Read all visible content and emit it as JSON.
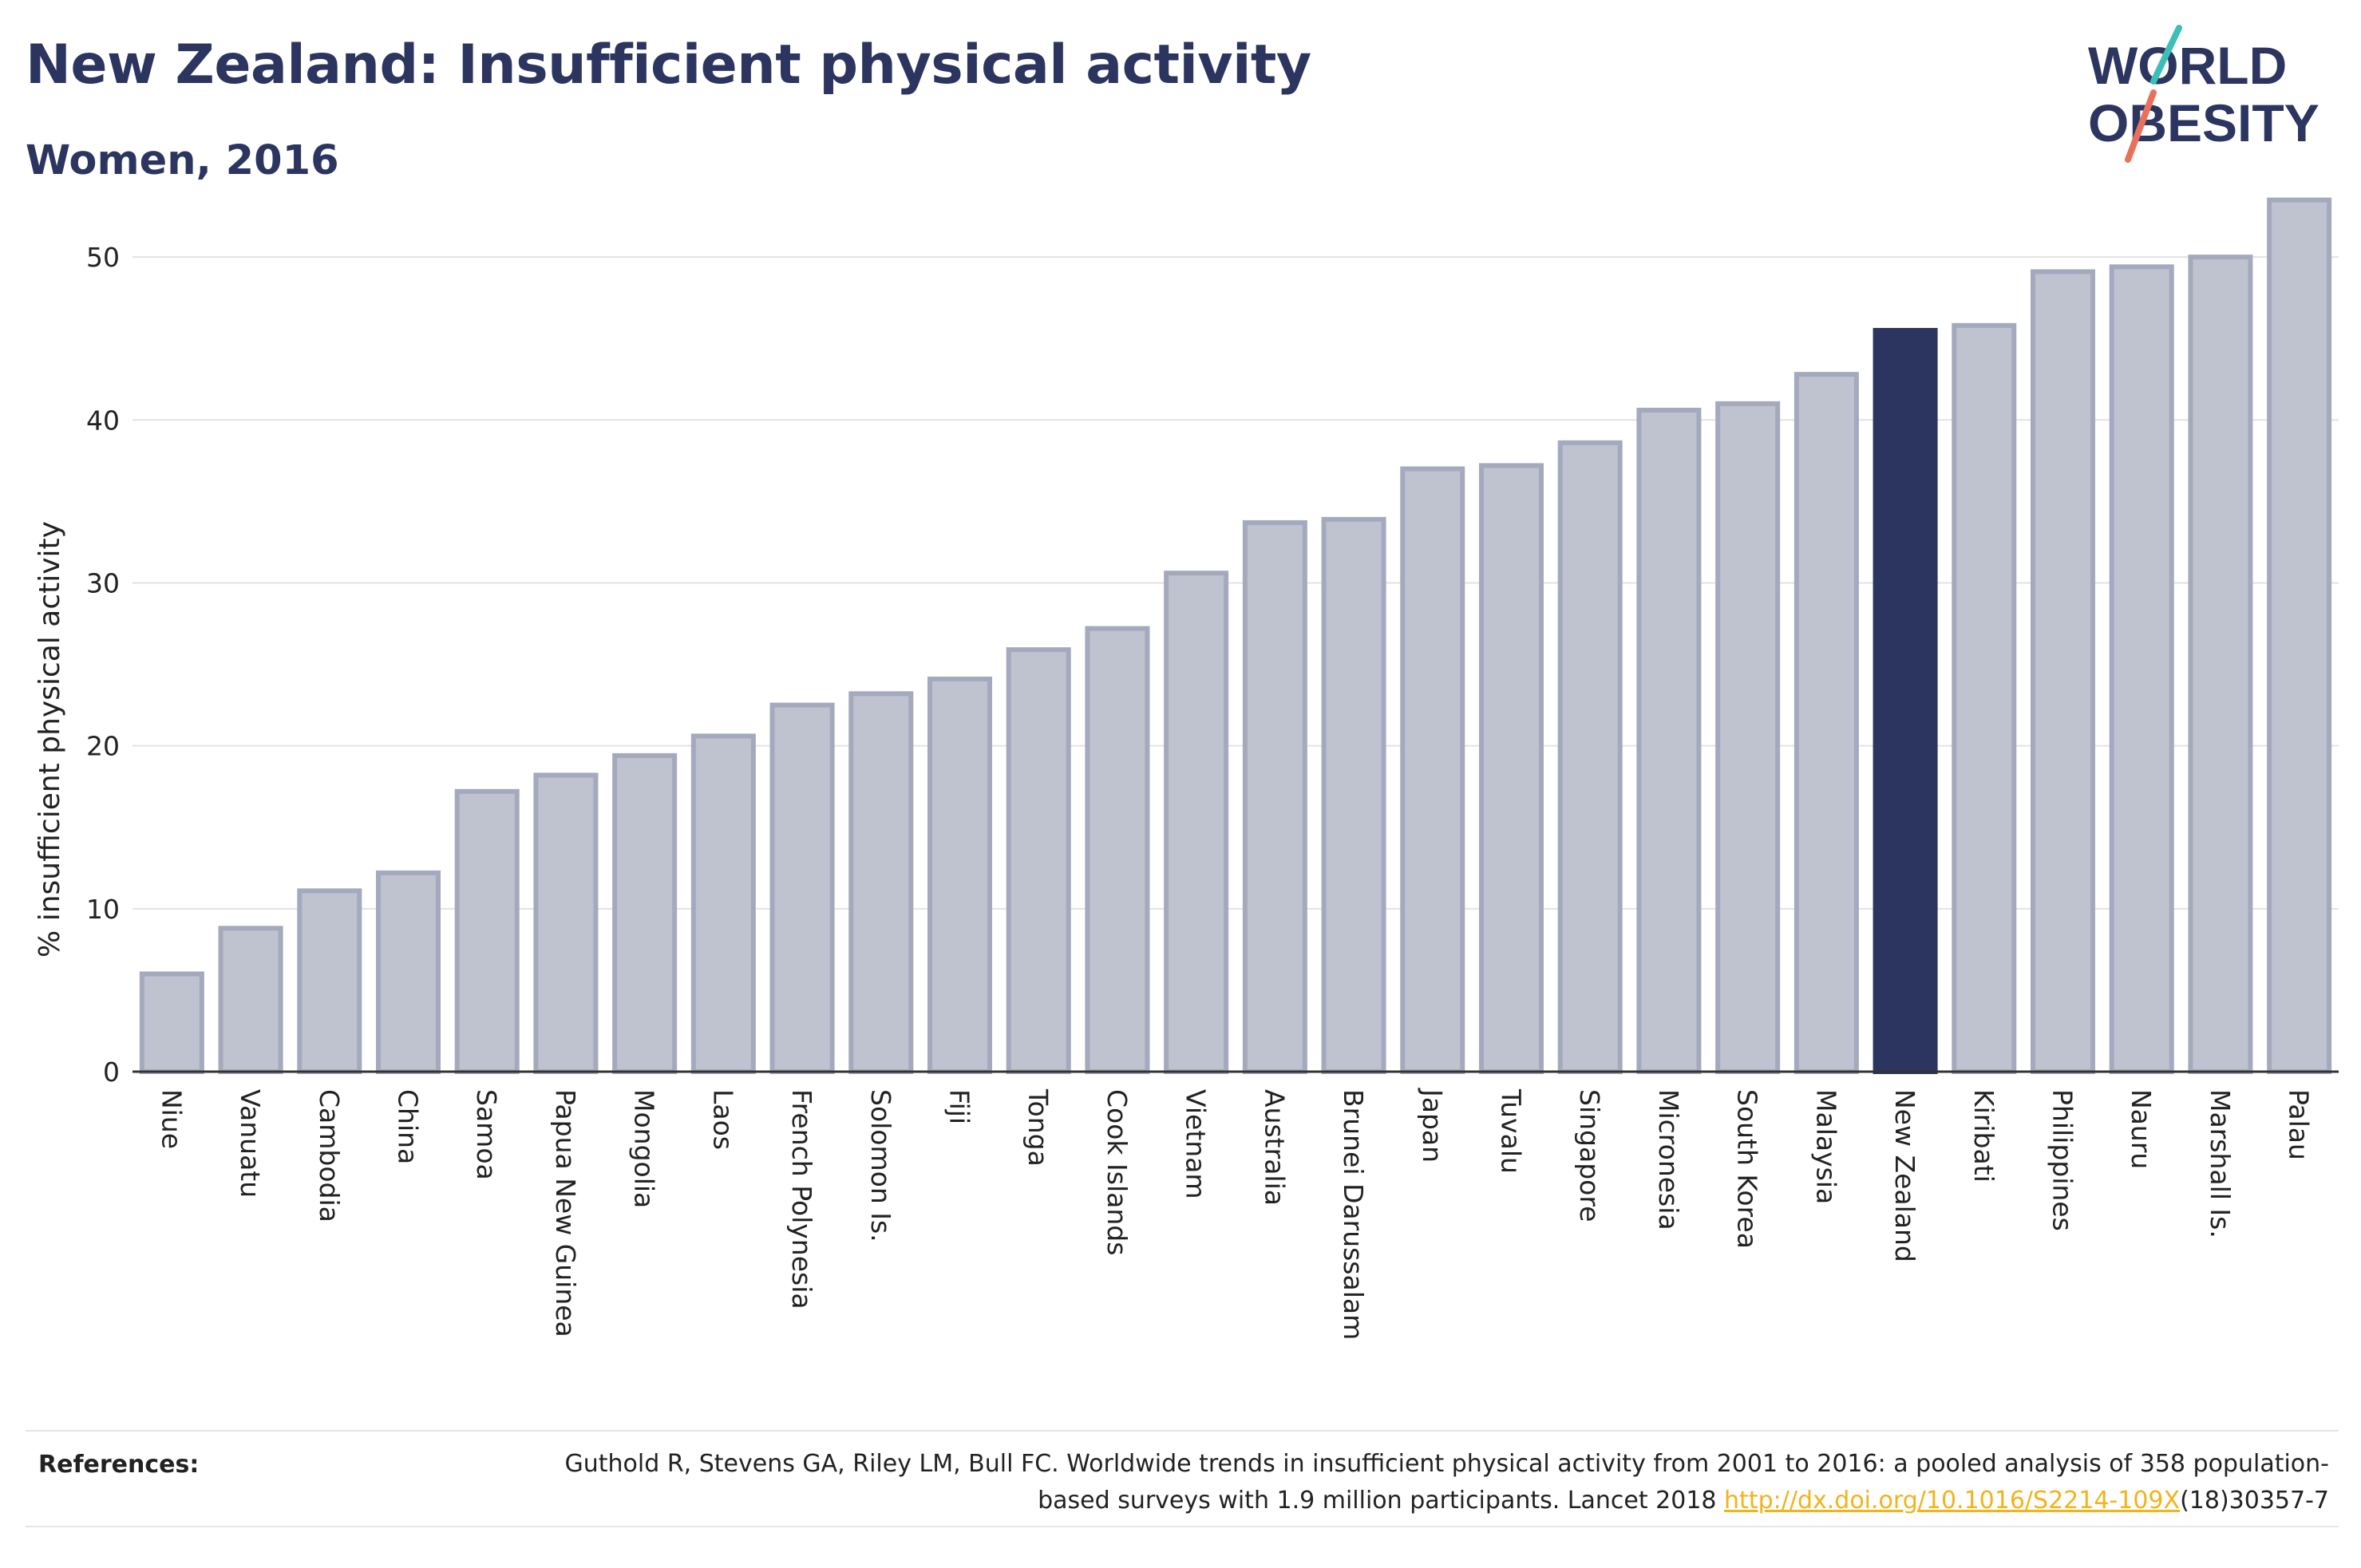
{
  "header": {
    "title": "New Zealand: Insufficient physical activity",
    "subtitle": "Women, 2016"
  },
  "logo": {
    "line1": "WORLD",
    "line2": "OBESITY",
    "text_color": "#2b3560",
    "slash_colors": [
      "#3bbfb6",
      "#e8715c"
    ]
  },
  "chart_data": {
    "type": "bar",
    "title": "",
    "xlabel": "",
    "ylabel": "% insufficient physical activity",
    "ylim": [
      0,
      55
    ],
    "yticks": [
      0,
      10,
      20,
      30,
      40,
      50
    ],
    "grid": true,
    "categories": [
      "Niue",
      "Vanuatu",
      "Cambodia",
      "China",
      "Samoa",
      "Papua New Guinea",
      "Mongolia",
      "Laos",
      "French Polynesia",
      "Solomon Is.",
      "Fiji",
      "Tonga",
      "Cook Islands",
      "Vietnam",
      "Australia",
      "Brunei Darussalam",
      "Japan",
      "Tuvalu",
      "Singapore",
      "Micronesia",
      "South Korea",
      "Malaysia",
      "New Zealand",
      "Kiribati",
      "Philippines",
      "Nauru",
      "Marshall Is.",
      "Palau"
    ],
    "values": [
      6.0,
      8.8,
      11.1,
      12.2,
      17.2,
      18.2,
      19.4,
      20.6,
      22.5,
      23.2,
      24.1,
      25.9,
      27.2,
      30.6,
      33.7,
      33.9,
      37.0,
      37.2,
      38.6,
      40.6,
      41.0,
      42.8,
      45.5,
      45.8,
      49.1,
      49.4,
      50.0,
      53.5
    ],
    "highlight": "New Zealand",
    "colors": {
      "bar_fill": "#bfc2cf",
      "bar_stroke": "#a4a9be",
      "highlight_fill": "#2b3560",
      "grid": "#e3e3e3",
      "axis": "#333333"
    }
  },
  "references": {
    "label": "References:",
    "text_before_link": "Guthold R, Stevens GA, Riley LM, Bull FC. Worldwide trends in insufficient physical activity from 2001 to 2016: a pooled analysis of 358 population-based surveys with 1.9 million participants. Lancet 2018 ",
    "link": "http://dx.doi.org/10.1016/S2214-109X",
    "text_after_link": "(18)30357-7"
  }
}
